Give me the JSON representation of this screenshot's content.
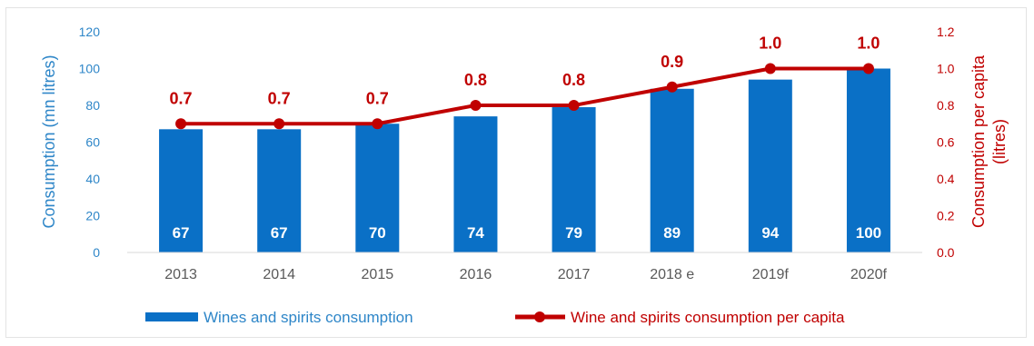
{
  "chart_data": {
    "type": "bar",
    "categories": [
      "2013",
      "2014",
      "2015",
      "2016",
      "2017",
      "2018 e",
      "2019f",
      "2020f"
    ],
    "series": [
      {
        "name": "Wines and spirits consumption",
        "type": "bar",
        "axis": "left",
        "values": [
          67,
          67,
          70,
          74,
          79,
          89,
          94,
          100
        ],
        "labels": [
          "67",
          "67",
          "70",
          "74",
          "79",
          "89",
          "94",
          "100"
        ]
      },
      {
        "name": "Wine and spirits consumption per capita",
        "type": "line",
        "axis": "right",
        "values": [
          0.7,
          0.7,
          0.7,
          0.8,
          0.8,
          0.9,
          1.0,
          1.0
        ],
        "labels": [
          "0.7",
          "0.7",
          "0.7",
          "0.8",
          "0.8",
          "0.9",
          "1.0",
          "1.0"
        ]
      }
    ],
    "ylabel_left": "Consumption (mn litres)",
    "ylabel_right_line1": "Consumption per capita",
    "ylabel_right_line2": "(litres)",
    "ylim_left": [
      0,
      120
    ],
    "ylim_right": [
      0,
      1.2
    ],
    "yticks_left": [
      "0",
      "20",
      "40",
      "60",
      "80",
      "100",
      "120"
    ],
    "yticks_right": [
      "0.0",
      "0.2",
      "0.4",
      "0.6",
      "0.8",
      "1.0",
      "1.2"
    ],
    "grid": false,
    "legend_position": "bottom",
    "colors": {
      "bar": "#0a70c6",
      "line": "#c00000",
      "left_axis": "#2e86c8",
      "right_axis": "#c00000",
      "x_ticks": "#595959"
    }
  }
}
